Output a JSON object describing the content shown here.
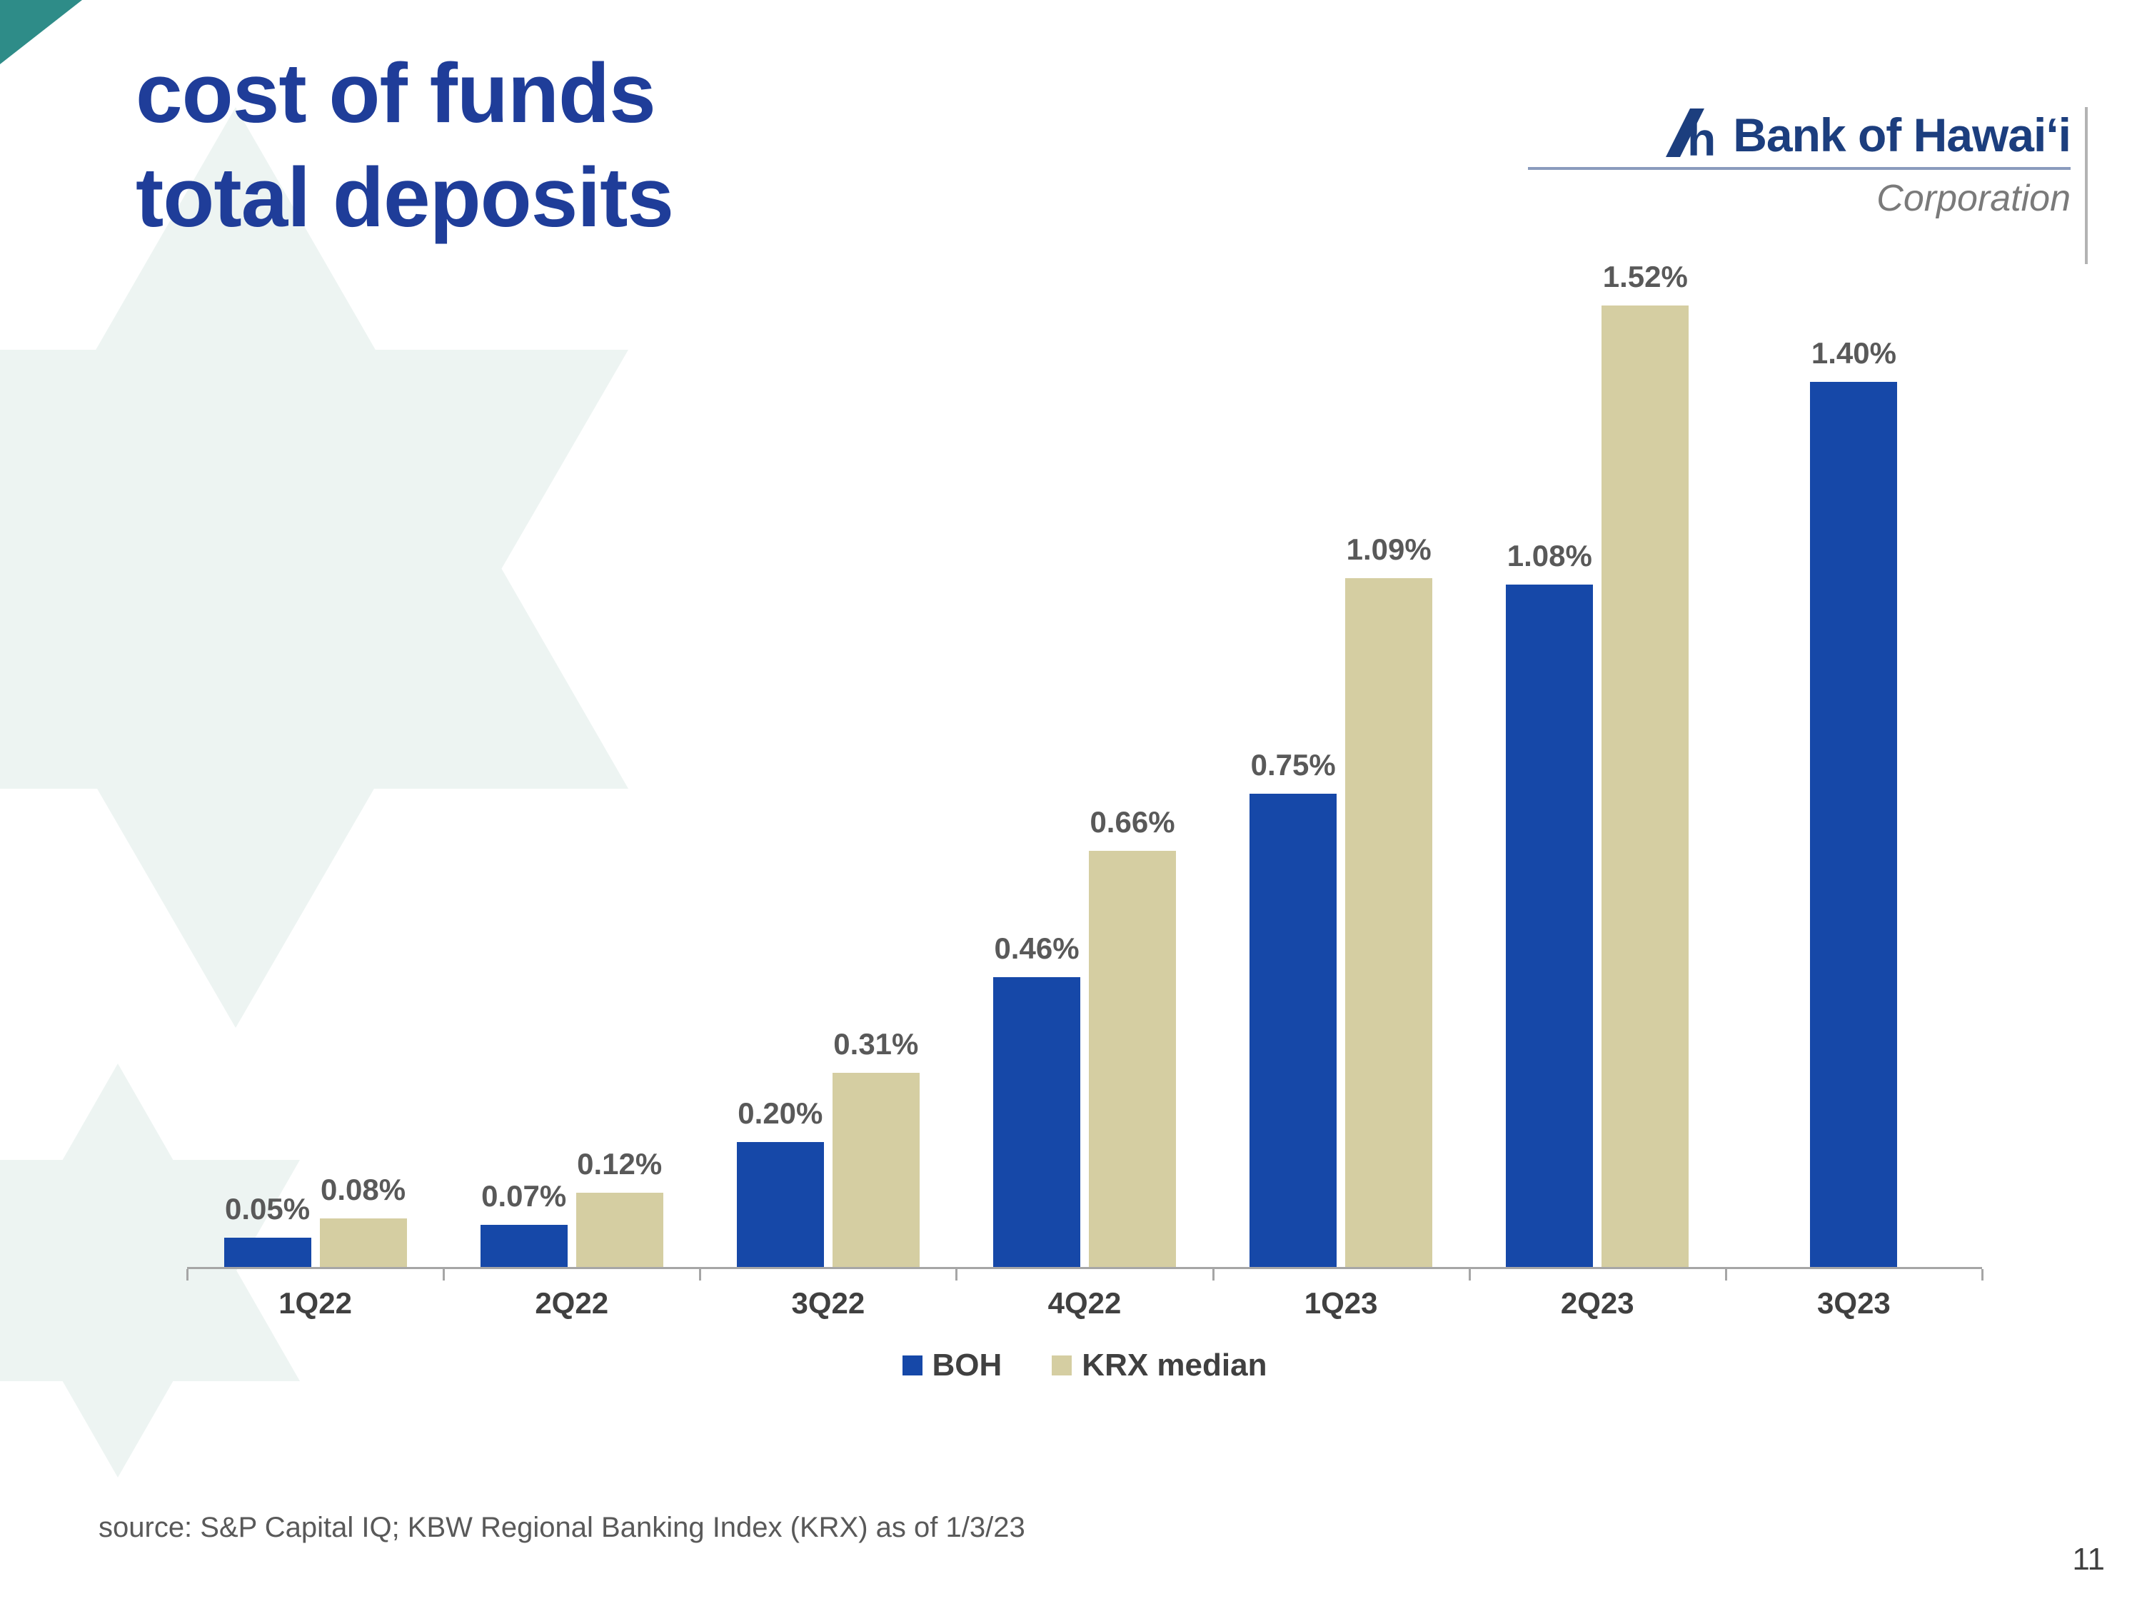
{
  "slide": {
    "title_line1": "cost of funds",
    "title_line2": "total deposits",
    "source": "source: S&P Capital IQ; KBW Regional Banking Index (KRX) as of 1/3/23",
    "page_number": "11"
  },
  "logo": {
    "name": "Bank of Hawaiʻi",
    "subtitle": "Corporation",
    "mark": "h"
  },
  "colors": {
    "title_blue": "#1f3d99",
    "logo_navy": "#1c3e7e",
    "boh_blue": "#1648a8",
    "krx_tan": "#d5cea2",
    "decor_teal_light": "#edf4f2",
    "decor_teal_dark": "#2e8c88"
  },
  "chart_data": {
    "type": "bar",
    "title": "cost of funds total deposits",
    "categories": [
      "1Q22",
      "2Q22",
      "3Q22",
      "4Q22",
      "1Q23",
      "2Q23",
      "3Q23"
    ],
    "series": [
      {
        "name": "BOH",
        "color": "#1648a8",
        "values": [
          0.05,
          0.07,
          0.2,
          0.46,
          0.75,
          1.08,
          1.4
        ],
        "labels": [
          "0.05%",
          "0.07%",
          "0.20%",
          "0.46%",
          "0.75%",
          "1.08%",
          "1.40%"
        ]
      },
      {
        "name": "KRX median",
        "color": "#d5cea2",
        "values": [
          0.08,
          0.12,
          0.31,
          0.66,
          1.09,
          1.52,
          null
        ],
        "labels": [
          "0.08%",
          "0.12%",
          "0.31%",
          "0.66%",
          "1.09%",
          "1.52%",
          null
        ]
      }
    ],
    "xlabel": "",
    "ylabel": "",
    "ylim": [
      0,
      1.52
    ],
    "unit": "%",
    "grid": false,
    "legend_position": "bottom",
    "value_label_color": "#595959",
    "axis_color": "#a6a6a6"
  }
}
